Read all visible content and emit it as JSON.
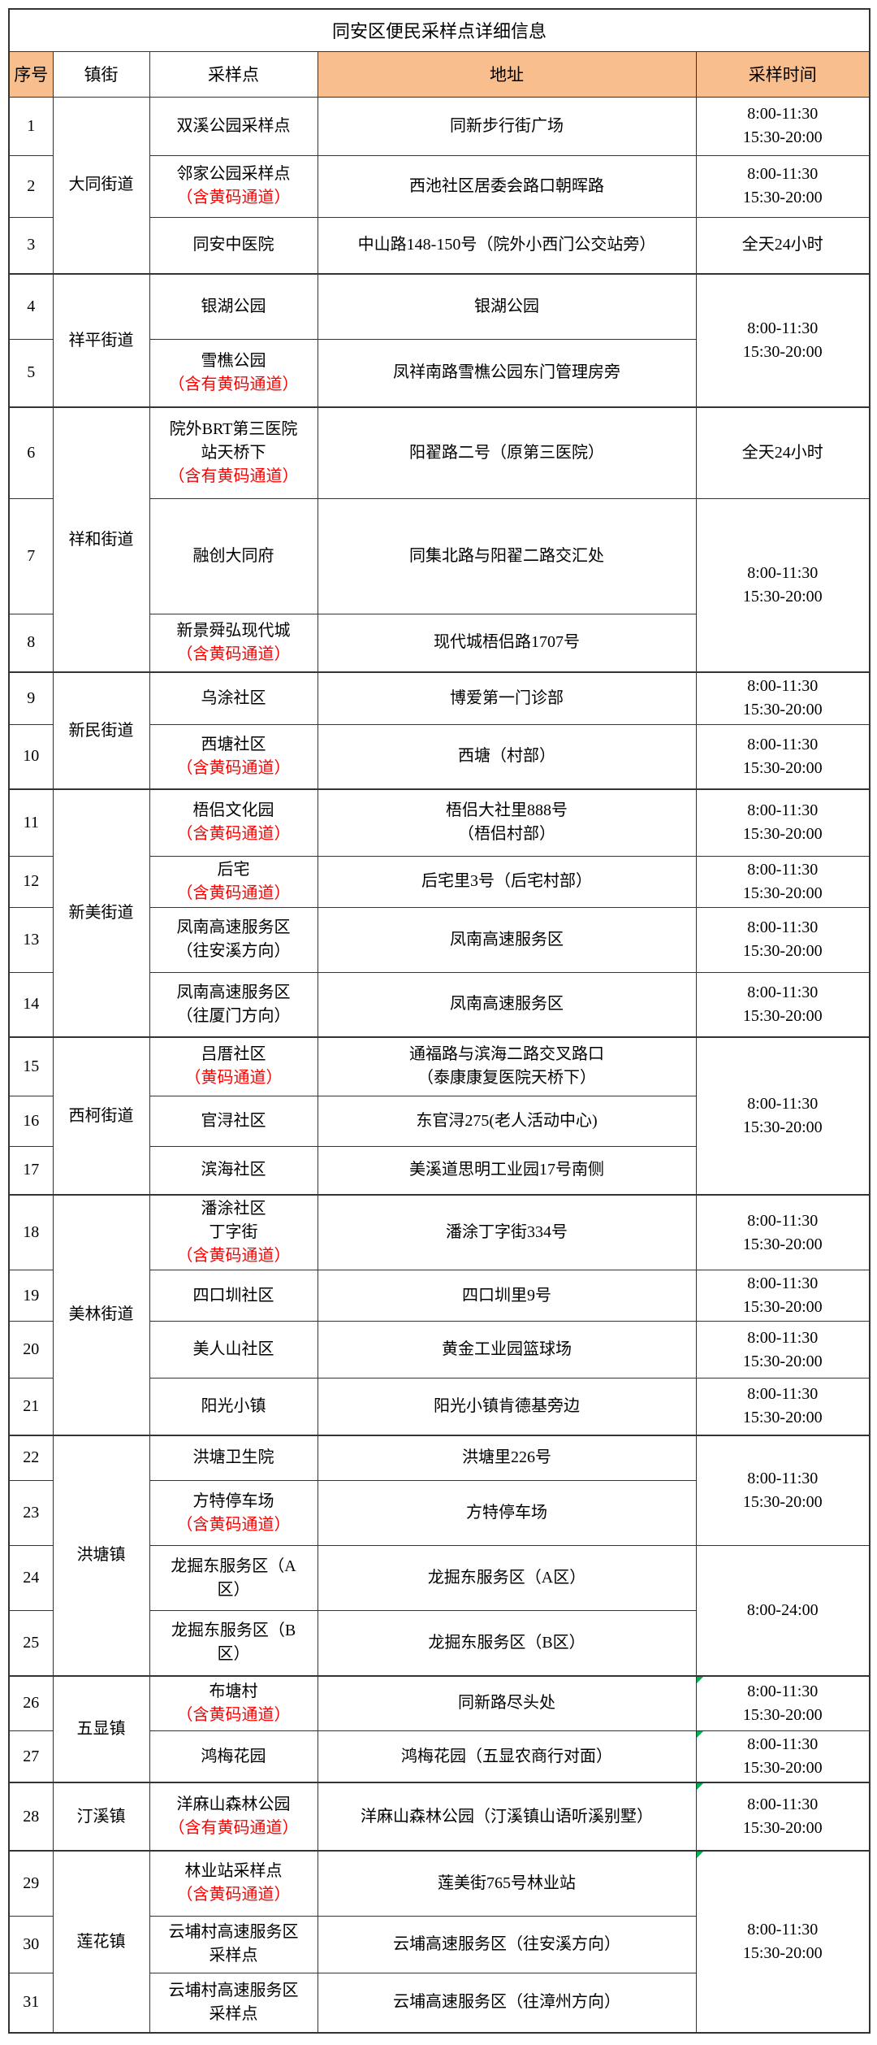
{
  "colors": {
    "header_fill": "#F9BE8D",
    "alert_red": "#FF0000",
    "comment_green": "#00B050",
    "grid_line": "#333333"
  },
  "table": {
    "title": "同安区便民采样点详细信息",
    "headers": [
      {
        "key": "no",
        "label": "序号",
        "highlight": true
      },
      {
        "key": "town",
        "label": "镇街",
        "highlight": false
      },
      {
        "key": "site",
        "label": "采样点",
        "highlight": false
      },
      {
        "key": "addr",
        "label": "地址",
        "highlight": true
      },
      {
        "key": "time",
        "label": "采样时间",
        "highlight": true
      }
    ],
    "rows": [
      {
        "no": "1",
        "town": {
          "text": "大同街道",
          "rowspan": 3
        },
        "site": [
          {
            "t": "双溪公园采样点"
          }
        ],
        "addr": [
          {
            "t": "同新步行街广场"
          }
        ],
        "time": {
          "lines": [
            "8:00-11:30",
            "15:30-20:00"
          ],
          "rowspan": 1,
          "mark": false
        }
      },
      {
        "no": "2",
        "town": null,
        "site": [
          {
            "t": "邻家公园采样点"
          },
          {
            "t": "（含黄码通道）",
            "red": true
          }
        ],
        "addr": [
          {
            "t": "西池社区居委会路口朝晖路"
          }
        ],
        "time": {
          "lines": [
            "8:00-11:30",
            "15:30-20:00"
          ],
          "rowspan": 1,
          "mark": false
        }
      },
      {
        "no": "3",
        "town": null,
        "site": [
          {
            "t": "同安中医院"
          }
        ],
        "addr": [
          {
            "t": "中山路148-150号（院外小西门公交站旁）"
          }
        ],
        "time": {
          "lines": [
            "全天24小时"
          ],
          "rowspan": 1,
          "mark": false
        }
      },
      {
        "no": "4",
        "town": {
          "text": "祥平街道",
          "rowspan": 2
        },
        "site": [
          {
            "t": "银湖公园"
          }
        ],
        "addr": [
          {
            "t": "银湖公园"
          }
        ],
        "time": {
          "lines": [
            "8:00-11:30",
            "15:30-20:00"
          ],
          "rowspan": 2,
          "mark": false
        }
      },
      {
        "no": "5",
        "town": null,
        "site": [
          {
            "t": "雪樵公园"
          },
          {
            "t": "（含有黄码通道）",
            "red": true
          }
        ],
        "addr": [
          {
            "t": "凤祥南路雪樵公园东门管理房旁"
          }
        ],
        "time": null
      },
      {
        "no": "6",
        "town": {
          "text": "祥和街道",
          "rowspan": 3
        },
        "site": [
          {
            "t": "院外BRT第三医院"
          },
          {
            "t": "站天桥下"
          },
          {
            "t": "（含有黄码通道）",
            "red": true
          }
        ],
        "addr": [
          {
            "t": "阳翟路二号（原第三医院）"
          }
        ],
        "time": {
          "lines": [
            "全天24小时"
          ],
          "rowspan": 1,
          "mark": false
        }
      },
      {
        "no": "7",
        "town": null,
        "site": [
          {
            "t": "融创大同府"
          }
        ],
        "addr": [
          {
            "t": "同集北路与阳翟二路交汇处"
          }
        ],
        "time": {
          "lines": [
            "8:00-11:30",
            "15:30-20:00"
          ],
          "rowspan": 2,
          "mark": false
        }
      },
      {
        "no": "8",
        "town": null,
        "site": [
          {
            "t": "新景舜弘现代城"
          },
          {
            "t": "（含黄码通道）",
            "red": true
          }
        ],
        "addr": [
          {
            "t": "现代城梧侣路1707号"
          }
        ],
        "time": null
      },
      {
        "no": "9",
        "town": {
          "text": "新民街道",
          "rowspan": 2
        },
        "site": [
          {
            "t": "乌涂社区"
          }
        ],
        "addr": [
          {
            "t": "博爱第一门诊部"
          }
        ],
        "time": {
          "lines": [
            "8:00-11:30",
            "15:30-20:00"
          ],
          "rowspan": 1,
          "mark": false
        }
      },
      {
        "no": "10",
        "town": null,
        "site": [
          {
            "t": "西塘社区"
          },
          {
            "t": "（含黄码通道）",
            "red": true
          }
        ],
        "addr": [
          {
            "t": "西塘（村部）"
          }
        ],
        "time": {
          "lines": [
            "8:00-11:30",
            "15:30-20:00"
          ],
          "rowspan": 1,
          "mark": false
        }
      },
      {
        "no": "11",
        "town": {
          "text": "新美街道",
          "rowspan": 4
        },
        "site": [
          {
            "t": "梧侣文化园"
          },
          {
            "t": "（含黄码通道）",
            "red": true
          }
        ],
        "addr": [
          {
            "t": "梧侣大社里888号"
          },
          {
            "t": "（梧侣村部）"
          }
        ],
        "time": {
          "lines": [
            "8:00-11:30",
            "15:30-20:00"
          ],
          "rowspan": 1,
          "mark": false
        }
      },
      {
        "no": "12",
        "town": null,
        "site": [
          {
            "t": "后宅"
          },
          {
            "t": "（含黄码通道）",
            "red": true
          }
        ],
        "addr": [
          {
            "t": "后宅里3号（后宅村部）"
          }
        ],
        "time": {
          "lines": [
            "8:00-11:30",
            "15:30-20:00"
          ],
          "rowspan": 1,
          "mark": false
        }
      },
      {
        "no": "13",
        "town": null,
        "site": [
          {
            "t": "凤南高速服务区"
          },
          {
            "t": "（往安溪方向）"
          }
        ],
        "addr": [
          {
            "t": "凤南高速服务区"
          }
        ],
        "time": {
          "lines": [
            "8:00-11:30",
            "15:30-20:00"
          ],
          "rowspan": 1,
          "mark": false
        }
      },
      {
        "no": "14",
        "town": null,
        "site": [
          {
            "t": "凤南高速服务区"
          },
          {
            "t": "（往厦门方向）"
          }
        ],
        "addr": [
          {
            "t": "凤南高速服务区"
          }
        ],
        "time": {
          "lines": [
            "8:00-11:30",
            "15:30-20:00"
          ],
          "rowspan": 1,
          "mark": false
        }
      },
      {
        "no": "15",
        "town": {
          "text": "西柯街道",
          "rowspan": 3
        },
        "site": [
          {
            "t": "吕厝社区"
          },
          {
            "t": "（黄码通道）",
            "red": true
          }
        ],
        "addr": [
          {
            "t": "通福路与滨海二路交叉路口"
          },
          {
            "t": "（泰康康复医院天桥下）"
          }
        ],
        "time": {
          "lines": [
            "8:00-11:30",
            "15:30-20:00"
          ],
          "rowspan": 3,
          "mark": false
        }
      },
      {
        "no": "16",
        "town": null,
        "site": [
          {
            "t": "官浔社区"
          }
        ],
        "addr": [
          {
            "t": "东官浔275(老人活动中心)"
          }
        ],
        "time": null
      },
      {
        "no": "17",
        "town": null,
        "site": [
          {
            "t": "滨海社区"
          }
        ],
        "addr": [
          {
            "t": "美溪道思明工业园17号南侧"
          }
        ],
        "time": null
      },
      {
        "no": "18",
        "town": {
          "text": "美林街道",
          "rowspan": 4
        },
        "site": [
          {
            "t": "潘涂社区"
          },
          {
            "t": "丁字街"
          },
          {
            "t": "（含黄码通道）",
            "red": true
          }
        ],
        "addr": [
          {
            "t": "潘涂丁字街334号"
          }
        ],
        "time": {
          "lines": [
            "8:00-11:30",
            "15:30-20:00"
          ],
          "rowspan": 1,
          "mark": false
        }
      },
      {
        "no": "19",
        "town": null,
        "site": [
          {
            "t": "四口圳社区"
          }
        ],
        "addr": [
          {
            "t": "四口圳里9号"
          }
        ],
        "time": {
          "lines": [
            "8:00-11:30",
            "15:30-20:00"
          ],
          "rowspan": 1,
          "mark": false
        }
      },
      {
        "no": "20",
        "town": null,
        "site": [
          {
            "t": "美人山社区"
          }
        ],
        "addr": [
          {
            "t": "黄金工业园篮球场"
          }
        ],
        "time": {
          "lines": [
            "8:00-11:30",
            "15:30-20:00"
          ],
          "rowspan": 1,
          "mark": false
        }
      },
      {
        "no": "21",
        "town": null,
        "site": [
          {
            "t": "阳光小镇"
          }
        ],
        "addr": [
          {
            "t": "阳光小镇肯德基旁边"
          }
        ],
        "time": {
          "lines": [
            "8:00-11:30",
            "15:30-20:00"
          ],
          "rowspan": 1,
          "mark": false
        }
      },
      {
        "no": "22",
        "town": {
          "text": "洪塘镇",
          "rowspan": 4
        },
        "site": [
          {
            "t": "洪塘卫生院"
          }
        ],
        "addr": [
          {
            "t": "洪塘里226号"
          }
        ],
        "time": {
          "lines": [
            "8:00-11:30",
            "15:30-20:00"
          ],
          "rowspan": 2,
          "mark": false
        }
      },
      {
        "no": "23",
        "town": null,
        "site": [
          {
            "t": "方特停车场"
          },
          {
            "t": "（含黄码通道）",
            "red": true
          }
        ],
        "addr": [
          {
            "t": "方特停车场"
          }
        ],
        "time": null
      },
      {
        "no": "24",
        "town": null,
        "site": [
          {
            "t": "龙掘东服务区（A"
          },
          {
            "t": "区）"
          }
        ],
        "addr": [
          {
            "t": "龙掘东服务区（A区）"
          }
        ],
        "time": {
          "lines": [
            "8:00-24:00"
          ],
          "rowspan": 2,
          "mark": false
        }
      },
      {
        "no": "25",
        "town": null,
        "site": [
          {
            "t": "龙掘东服务区（B"
          },
          {
            "t": "区）"
          }
        ],
        "addr": [
          {
            "t": "龙掘东服务区（B区）"
          }
        ],
        "time": null
      },
      {
        "no": "26",
        "town": {
          "text": "五显镇",
          "rowspan": 2
        },
        "site": [
          {
            "t": "布塘村"
          },
          {
            "t": "（含黄码通道）",
            "red": true
          }
        ],
        "addr": [
          {
            "t": "同新路尽头处"
          }
        ],
        "time": {
          "lines": [
            "8:00-11:30",
            "15:30-20:00"
          ],
          "rowspan": 1,
          "mark": true
        }
      },
      {
        "no": "27",
        "town": null,
        "site": [
          {
            "t": "鸿梅花园"
          }
        ],
        "addr": [
          {
            "t": "鸿梅花园（五显农商行对面）"
          }
        ],
        "time": {
          "lines": [
            "8:00-11:30",
            "15:30-20:00"
          ],
          "rowspan": 1,
          "mark": true
        }
      },
      {
        "no": "28",
        "town": {
          "text": "汀溪镇",
          "rowspan": 1
        },
        "site": [
          {
            "t": "洋麻山森林公园"
          },
          {
            "t": "（含有黄码通道）",
            "red": true
          }
        ],
        "addr": [
          {
            "t": "洋麻山森林公园（汀溪镇山语听溪别墅）"
          }
        ],
        "time": {
          "lines": [
            "8:00-11:30",
            "15:30-20:00"
          ],
          "rowspan": 1,
          "mark": true
        }
      },
      {
        "no": "29",
        "town": {
          "text": "莲花镇",
          "rowspan": 3
        },
        "site": [
          {
            "t": "林业站采样点"
          },
          {
            "t": "（含黄码通道）",
            "red": true
          }
        ],
        "addr": [
          {
            "t": "莲美街765号林业站"
          }
        ],
        "time": {
          "lines": [
            "8:00-11:30",
            "15:30-20:00"
          ],
          "rowspan": 3,
          "mark": true
        }
      },
      {
        "no": "30",
        "town": null,
        "site": [
          {
            "t": "云埔村高速服务区"
          },
          {
            "t": "采样点"
          }
        ],
        "addr": [
          {
            "t": "云埔高速服务区（往安溪方向）"
          }
        ],
        "time": null
      },
      {
        "no": "31",
        "town": null,
        "site": [
          {
            "t": "云埔村高速服务区"
          },
          {
            "t": "采样点"
          }
        ],
        "addr": [
          {
            "t": "云埔高速服务区（往漳州方向）"
          }
        ],
        "time": null
      }
    ]
  }
}
